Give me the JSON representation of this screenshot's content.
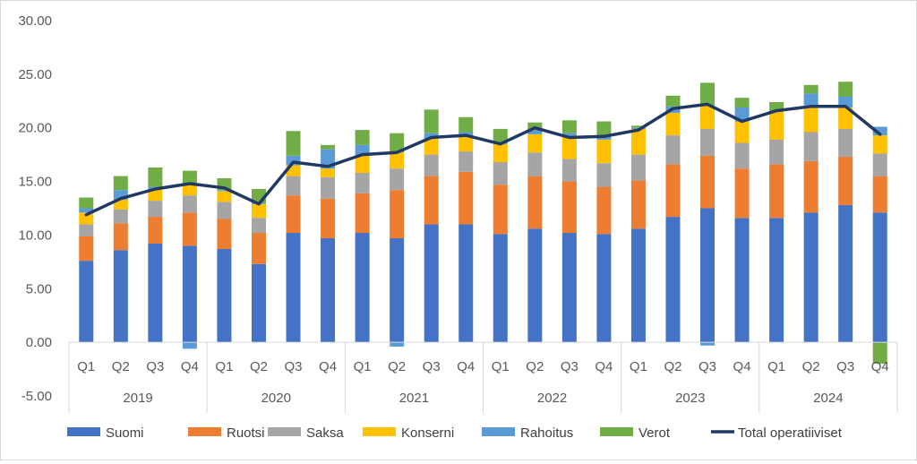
{
  "chart_data": {
    "type": "bar",
    "stacked": true,
    "title": "",
    "xlabel": "",
    "ylabel": "",
    "ylim": [
      -5,
      30
    ],
    "yticks": [
      "-5.00",
      "0.00",
      "5.00",
      "10.00",
      "15.00",
      "20.00",
      "25.00",
      "30.00"
    ],
    "grid": false,
    "legend_position": "bottom",
    "quarter_labels": [
      "Q1",
      "Q2",
      "Q3",
      "Q4",
      "Q1",
      "Q2",
      "Q3",
      "Q4",
      "Q1",
      "Q2",
      "Q3",
      "Q4",
      "Q1",
      "Q2",
      "Q3",
      "Q4",
      "Q1",
      "Q2",
      "Q3",
      "Q4",
      "Q1",
      "Q2",
      "Q3",
      "Q4"
    ],
    "year_labels": [
      "2019",
      "2020",
      "2021",
      "2022",
      "2023",
      "2024"
    ],
    "series": [
      {
        "name": "Suomi",
        "type": "bar",
        "color": "#4472C4",
        "values": [
          7.6,
          8.6,
          9.2,
          9.0,
          8.7,
          7.3,
          10.2,
          9.7,
          10.2,
          9.7,
          11.0,
          11.0,
          10.1,
          10.6,
          10.2,
          10.1,
          10.6,
          11.7,
          12.5,
          11.6,
          11.6,
          12.1,
          12.8,
          12.1
        ]
      },
      {
        "name": "Ruotsi",
        "type": "bar",
        "color": "#ED7D31",
        "values": [
          2.3,
          2.5,
          2.5,
          3.1,
          2.8,
          2.9,
          3.5,
          3.7,
          3.7,
          4.5,
          4.5,
          4.9,
          4.6,
          4.9,
          4.8,
          4.4,
          4.5,
          4.9,
          4.9,
          4.6,
          5.0,
          4.8,
          4.5,
          3.4
        ]
      },
      {
        "name": "Saksa",
        "type": "bar",
        "color": "#A5A5A5",
        "values": [
          1.1,
          1.3,
          1.5,
          1.6,
          1.6,
          1.4,
          1.8,
          2.0,
          1.9,
          2.0,
          2.0,
          1.9,
          2.1,
          2.2,
          2.1,
          2.2,
          2.4,
          2.7,
          2.5,
          2.4,
          2.3,
          2.7,
          2.6,
          2.1
        ]
      },
      {
        "name": "Konserni",
        "type": "bar",
        "color": "#FFC000",
        "values": [
          1.1,
          0.9,
          1.1,
          1.0,
          1.0,
          1.3,
          1.0,
          0.8,
          1.6,
          1.5,
          1.5,
          1.4,
          1.7,
          1.7,
          2.1,
          2.2,
          2.4,
          2.1,
          2.2,
          2.0,
          2.6,
          2.5,
          2.0,
          1.7
        ]
      },
      {
        "name": "Rahoitus",
        "type": "bar",
        "color": "#5B9BD5",
        "values": [
          0.4,
          0.9,
          0.2,
          -0.6,
          0.1,
          0.1,
          0.9,
          1.8,
          1.0,
          -0.4,
          0.5,
          0.4,
          0.1,
          0.4,
          0.3,
          0.3,
          0.1,
          0.6,
          -0.3,
          1.3,
          0.0,
          1.1,
          1.0,
          0.8
        ]
      },
      {
        "name": "Verot",
        "type": "bar",
        "color": "#70AD47",
        "values": [
          1.0,
          1.3,
          1.8,
          1.3,
          1.1,
          1.3,
          2.3,
          0.4,
          1.4,
          1.8,
          2.2,
          1.4,
          1.3,
          0.7,
          1.2,
          1.4,
          0.2,
          1.0,
          2.1,
          0.9,
          0.9,
          0.8,
          1.4,
          -2.0
        ]
      },
      {
        "name": "Total operatiiviset",
        "type": "line",
        "color": "#203864",
        "values": [
          11.9,
          13.4,
          14.3,
          14.8,
          14.4,
          12.9,
          16.8,
          16.4,
          17.5,
          17.7,
          19.1,
          19.3,
          18.5,
          20.0,
          19.1,
          19.2,
          19.8,
          21.8,
          22.2,
          20.6,
          21.6,
          22.0,
          22.0,
          19.4
        ]
      }
    ]
  }
}
